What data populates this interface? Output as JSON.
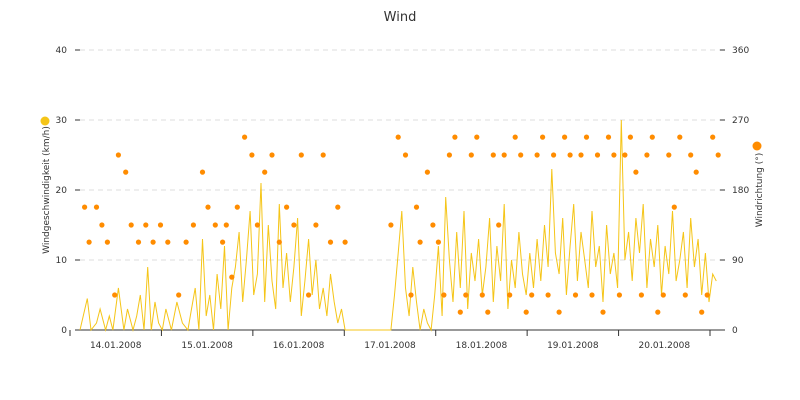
{
  "chart_data": {
    "type": "line",
    "title": "Wind",
    "ylabel": "Windgeschwindigkeit (km/h)",
    "y2label": "Windrichtung (°)",
    "ylim": [
      0,
      40
    ],
    "y2lim": [
      0,
      360
    ],
    "yticks": [
      "0",
      "10",
      "20",
      "30",
      "40"
    ],
    "y2ticks": [
      "0",
      "90",
      "180",
      "270",
      "360"
    ],
    "categories": [
      "14.01.2008",
      "15.01.2008",
      "16.01.2008",
      "17.01.2008",
      "18.01.2008",
      "19.01.2008",
      "20.01.2008"
    ],
    "grid": true,
    "colors": {
      "speed": "#f5c518",
      "direction": "#ff8c00"
    },
    "series": [
      {
        "name": "Windgeschwindigkeit (km/h)",
        "axis": "left",
        "x": [
          0.0,
          0.08,
          0.12,
          0.18,
          0.22,
          0.28,
          0.32,
          0.36,
          0.42,
          0.48,
          0.52,
          0.58,
          0.62,
          0.66,
          0.7,
          0.74,
          0.78,
          0.82,
          0.86,
          0.9,
          0.94,
          1.0,
          1.06,
          1.12,
          1.18,
          1.22,
          1.26,
          1.3,
          1.34,
          1.38,
          1.42,
          1.46,
          1.5,
          1.54,
          1.58,
          1.62,
          1.66,
          1.7,
          1.74,
          1.78,
          1.82,
          1.86,
          1.9,
          1.94,
          1.98,
          2.02,
          2.06,
          2.1,
          2.14,
          2.18,
          2.22,
          2.26,
          2.3,
          2.34,
          2.38,
          2.42,
          2.46,
          2.5,
          2.54,
          2.58,
          2.62,
          2.66,
          2.7,
          2.74,
          2.78,
          2.82,
          2.86,
          2.9,
          3.4,
          3.44,
          3.48,
          3.52,
          3.56,
          3.6,
          3.64,
          3.68,
          3.72,
          3.76,
          3.8,
          3.84,
          3.88,
          3.92,
          3.96,
          4.0,
          4.04,
          4.08,
          4.12,
          4.16,
          4.2,
          4.24,
          4.28,
          4.32,
          4.36,
          4.4,
          4.44,
          4.48,
          4.52,
          4.56,
          4.6,
          4.64,
          4.68,
          4.72,
          4.76,
          4.8,
          4.84,
          4.88,
          4.92,
          4.96,
          5.0,
          5.04,
          5.08,
          5.12,
          5.16,
          5.2,
          5.24,
          5.28,
          5.32,
          5.36,
          5.4,
          5.44,
          5.48,
          5.52,
          5.56,
          5.6,
          5.64,
          5.68,
          5.72,
          5.76,
          5.8,
          5.84,
          5.88,
          5.92,
          5.96,
          6.0,
          6.04,
          6.08,
          6.12,
          6.16,
          6.2,
          6.24,
          6.28,
          6.32,
          6.36,
          6.4,
          6.44,
          6.48,
          6.52,
          6.56,
          6.6,
          6.64,
          6.68,
          6.72,
          6.76,
          6.8,
          6.84,
          6.88,
          6.92,
          6.96
        ],
        "values": [
          0,
          4.5,
          0,
          1,
          3,
          0,
          2,
          0,
          6,
          0,
          3,
          0,
          2,
          5,
          0,
          9,
          0,
          4,
          1,
          0,
          3,
          0,
          4,
          1,
          0,
          3,
          6,
          0,
          13,
          2,
          5,
          0,
          8,
          3,
          12,
          0,
          6,
          9,
          14,
          4,
          10,
          17,
          5,
          8,
          21,
          4,
          15,
          7,
          3,
          18,
          6,
          11,
          4,
          9,
          16,
          2,
          7,
          13,
          5,
          10,
          3,
          6,
          2,
          8,
          4,
          1,
          3,
          0,
          0,
          5,
          11,
          17,
          6,
          2,
          9,
          4,
          0,
          3,
          1,
          0,
          5,
          12,
          2,
          19,
          10,
          4,
          14,
          6,
          17,
          3,
          11,
          7,
          13,
          5,
          9,
          16,
          4,
          12,
          7,
          18,
          3,
          10,
          6,
          14,
          8,
          5,
          11,
          6,
          13,
          7,
          15,
          9,
          23,
          11,
          8,
          16,
          5,
          12,
          18,
          7,
          14,
          10,
          6,
          17,
          9,
          12,
          4,
          15,
          8,
          11,
          6,
          30,
          10,
          14,
          7,
          16,
          11,
          18,
          6,
          13,
          9,
          15,
          5,
          12,
          8,
          17,
          7,
          10,
          14,
          6,
          16,
          9,
          13,
          5,
          11,
          4,
          8,
          7
        ]
      },
      {
        "name": "Windrichtung (°)",
        "axis": "right",
        "x": [
          0.05,
          0.1,
          0.18,
          0.24,
          0.3,
          0.38,
          0.42,
          0.5,
          0.56,
          0.64,
          0.72,
          0.8,
          0.88,
          0.96,
          1.08,
          1.16,
          1.24,
          1.34,
          1.4,
          1.48,
          1.56,
          1.6,
          1.66,
          1.72,
          1.8,
          1.88,
          1.94,
          2.02,
          2.1,
          2.18,
          2.26,
          2.34,
          2.42,
          2.5,
          2.58,
          2.66,
          2.74,
          2.82,
          2.9,
          3.4,
          3.48,
          3.56,
          3.62,
          3.68,
          3.72,
          3.8,
          3.86,
          3.92,
          3.98,
          4.04,
          4.1,
          4.16,
          4.22,
          4.28,
          4.34,
          4.4,
          4.46,
          4.52,
          4.58,
          4.64,
          4.7,
          4.76,
          4.82,
          4.88,
          4.94,
          5.0,
          5.06,
          5.12,
          5.18,
          5.24,
          5.3,
          5.36,
          5.42,
          5.48,
          5.54,
          5.6,
          5.66,
          5.72,
          5.78,
          5.84,
          5.9,
          5.96,
          6.02,
          6.08,
          6.14,
          6.2,
          6.26,
          6.32,
          6.38,
          6.44,
          6.5,
          6.56,
          6.62,
          6.68,
          6.74,
          6.8,
          6.86,
          6.92,
          6.98
        ],
        "values": [
          158,
          113,
          158,
          135,
          113,
          45,
          225,
          203,
          135,
          113,
          135,
          113,
          135,
          113,
          45,
          113,
          135,
          203,
          158,
          135,
          113,
          135,
          68,
          158,
          248,
          225,
          135,
          203,
          225,
          113,
          158,
          135,
          225,
          45,
          135,
          225,
          113,
          158,
          113,
          135,
          248,
          225,
          45,
          158,
          113,
          203,
          135,
          113,
          45,
          225,
          248,
          23,
          45,
          225,
          248,
          45,
          23,
          225,
          135,
          225,
          45,
          248,
          225,
          23,
          45,
          225,
          248,
          45,
          225,
          23,
          248,
          225,
          45,
          225,
          248,
          45,
          225,
          23,
          248,
          225,
          45,
          225,
          248,
          203,
          45,
          225,
          248,
          23,
          45,
          225,
          158,
          248,
          45,
          225,
          203,
          23,
          45,
          248,
          225
        ]
      }
    ]
  }
}
